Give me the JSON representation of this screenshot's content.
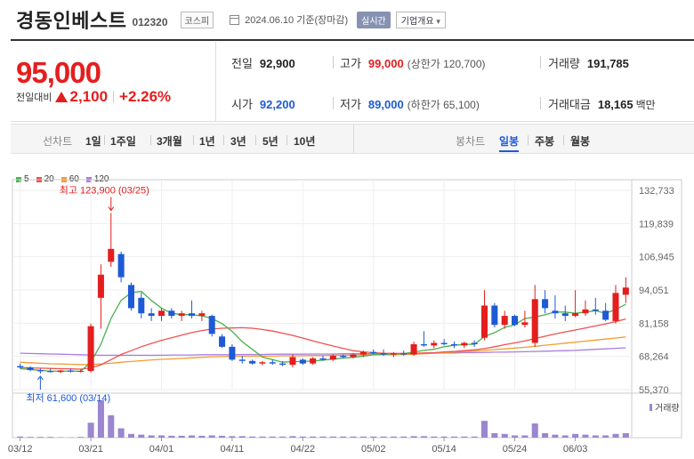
{
  "header": {
    "name": "경동인베스트",
    "code": "012320",
    "market": "코스피",
    "date": "2024.06.10 기준(장마감)",
    "realtime": "실시간",
    "company_info": "기업개요",
    "company_info_arrow": "▾"
  },
  "price": {
    "current": "95,000",
    "change_label": "전일대비",
    "change_amount": "2,100",
    "change_percent": "+2.26%",
    "color_up": "#e41e1e",
    "color_down": "#1e5ad6"
  },
  "stats": {
    "prev_label": "전일",
    "prev": "92,900",
    "high_label": "고가",
    "high": "99,000",
    "upper_limit": "(상한가 120,700)",
    "volume_label": "거래량",
    "volume": "191,785",
    "open_label": "시가",
    "open": "92,200",
    "low_label": "저가",
    "low": "89,000",
    "lower_limit": "(하한가 65,100)",
    "amount_label": "거래대금",
    "amount": "18,165",
    "amount_unit": "백만"
  },
  "toolbar": {
    "line_label": "선차트",
    "line_periods": [
      "1일",
      "1주일",
      "3개월",
      "1년",
      "3년",
      "5년",
      "10년"
    ],
    "candle_label": "봉차트",
    "candle_periods": [
      "일봉",
      "주봉",
      "월봉"
    ],
    "candle_active": "일봉"
  },
  "chart_data": {
    "type": "candlestick",
    "legend": [
      {
        "name": "5",
        "color": "#4caf50"
      },
      {
        "name": "20",
        "color": "#f05050"
      },
      {
        "name": "60",
        "color": "#f39c32"
      },
      {
        "name": "120",
        "color": "#a97de0"
      }
    ],
    "y_ticks": [
      "132,733",
      "119,839",
      "106,945",
      "94,051",
      "81,158",
      "68,264",
      "55,370"
    ],
    "ylim": [
      55370,
      132733
    ],
    "x_ticks": [
      "03/12",
      "03/21",
      "04/01",
      "04/11",
      "04/22",
      "05/02",
      "05/14",
      "05/24",
      "06/03"
    ],
    "high_annotation": "최고 123,900 (03/25)",
    "low_annotation": "최저 61,600 (03/14)",
    "volume_label": "거래량",
    "candles": [
      {
        "d": "03/12",
        "o": 64500,
        "h": 65500,
        "l": 63500,
        "c": 64000
      },
      {
        "d": "03/13",
        "o": 64000,
        "h": 64500,
        "l": 62500,
        "c": 63000
      },
      {
        "d": "03/14",
        "o": 63000,
        "h": 63500,
        "l": 61600,
        "c": 62500
      },
      {
        "d": "03/15",
        "o": 62500,
        "h": 63500,
        "l": 62000,
        "c": 62200
      },
      {
        "d": "03/18",
        "o": 62200,
        "h": 63000,
        "l": 61800,
        "c": 62800
      },
      {
        "d": "03/19",
        "o": 62800,
        "h": 63500,
        "l": 62000,
        "c": 62400
      },
      {
        "d": "03/20",
        "o": 62400,
        "h": 63200,
        "l": 62000,
        "c": 62600
      },
      {
        "d": "03/21",
        "o": 62600,
        "h": 81000,
        "l": 62000,
        "c": 80000
      },
      {
        "d": "03/22",
        "o": 91000,
        "h": 104000,
        "l": 79000,
        "c": 100000
      },
      {
        "d": "03/25",
        "o": 105000,
        "h": 123900,
        "l": 103000,
        "c": 110000
      },
      {
        "d": "03/26",
        "o": 108000,
        "h": 109000,
        "l": 97000,
        "c": 99000
      },
      {
        "d": "03/27",
        "o": 96000,
        "h": 97000,
        "l": 86000,
        "c": 87000
      },
      {
        "d": "03/28",
        "o": 91000,
        "h": 93000,
        "l": 83000,
        "c": 85000
      },
      {
        "d": "03/29",
        "o": 85000,
        "h": 87000,
        "l": 82000,
        "c": 84000
      },
      {
        "d": "04/01",
        "o": 84000,
        "h": 87000,
        "l": 82000,
        "c": 86000
      },
      {
        "d": "04/02",
        "o": 86000,
        "h": 87000,
        "l": 83000,
        "c": 84000
      },
      {
        "d": "04/03",
        "o": 84000,
        "h": 86000,
        "l": 82000,
        "c": 85000
      },
      {
        "d": "04/04",
        "o": 85000,
        "h": 90000,
        "l": 83000,
        "c": 84000
      },
      {
        "d": "04/05",
        "o": 84000,
        "h": 86000,
        "l": 82000,
        "c": 85000
      },
      {
        "d": "04/08",
        "o": 84000,
        "h": 84500,
        "l": 76000,
        "c": 77000
      },
      {
        "d": "04/09",
        "o": 76000,
        "h": 77000,
        "l": 71500,
        "c": 72000
      },
      {
        "d": "04/11",
        "o": 72000,
        "h": 73000,
        "l": 66500,
        "c": 67000
      },
      {
        "d": "04/12",
        "o": 67000,
        "h": 68500,
        "l": 65500,
        "c": 66500
      },
      {
        "d": "04/15",
        "o": 66500,
        "h": 67000,
        "l": 65000,
        "c": 65500
      },
      {
        "d": "04/16",
        "o": 65500,
        "h": 66500,
        "l": 64800,
        "c": 66000
      },
      {
        "d": "04/17",
        "o": 66000,
        "h": 67000,
        "l": 65000,
        "c": 65500
      },
      {
        "d": "04/18",
        "o": 65500,
        "h": 66500,
        "l": 64500,
        "c": 65000
      },
      {
        "d": "04/19",
        "o": 65000,
        "h": 69000,
        "l": 64000,
        "c": 68000
      },
      {
        "d": "04/22",
        "o": 67000,
        "h": 67500,
        "l": 65000,
        "c": 65500
      },
      {
        "d": "04/23",
        "o": 65500,
        "h": 68000,
        "l": 65000,
        "c": 67500
      },
      {
        "d": "04/24",
        "o": 67500,
        "h": 68500,
        "l": 66500,
        "c": 67000
      },
      {
        "d": "04/25",
        "o": 67000,
        "h": 69000,
        "l": 66500,
        "c": 68500
      },
      {
        "d": "04/26",
        "o": 68500,
        "h": 69000,
        "l": 67500,
        "c": 68000
      },
      {
        "d": "04/29",
        "o": 68000,
        "h": 69500,
        "l": 67500,
        "c": 69000
      },
      {
        "d": "04/30",
        "o": 69000,
        "h": 70500,
        "l": 68000,
        "c": 70000
      },
      {
        "d": "05/02",
        "o": 70000,
        "h": 71000,
        "l": 69000,
        "c": 69500
      },
      {
        "d": "05/03",
        "o": 69500,
        "h": 71000,
        "l": 68500,
        "c": 69000
      },
      {
        "d": "05/07",
        "o": 69000,
        "h": 70000,
        "l": 68000,
        "c": 69500
      },
      {
        "d": "05/08",
        "o": 69500,
        "h": 70500,
        "l": 68500,
        "c": 69000
      },
      {
        "d": "05/09",
        "o": 69000,
        "h": 74000,
        "l": 68500,
        "c": 73000
      },
      {
        "d": "05/10",
        "o": 73000,
        "h": 78000,
        "l": 72000,
        "c": 72500
      },
      {
        "d": "05/13",
        "o": 72500,
        "h": 74500,
        "l": 71500,
        "c": 73500
      },
      {
        "d": "05/14",
        "o": 73500,
        "h": 75000,
        "l": 72500,
        "c": 73000
      },
      {
        "d": "05/16",
        "o": 73000,
        "h": 74000,
        "l": 71500,
        "c": 72500
      },
      {
        "d": "05/17",
        "o": 72500,
        "h": 74000,
        "l": 71500,
        "c": 73500
      },
      {
        "d": "05/20",
        "o": 73500,
        "h": 74500,
        "l": 72000,
        "c": 73000
      },
      {
        "d": "05/21",
        "o": 75500,
        "h": 94000,
        "l": 74500,
        "c": 88000
      },
      {
        "d": "05/22",
        "o": 88000,
        "h": 89000,
        "l": 79500,
        "c": 80500
      },
      {
        "d": "05/23",
        "o": 80500,
        "h": 86000,
        "l": 79000,
        "c": 84000
      },
      {
        "d": "05/24",
        "o": 84000,
        "h": 84500,
        "l": 80000,
        "c": 80500
      },
      {
        "d": "05/27",
        "o": 80500,
        "h": 86000,
        "l": 79500,
        "c": 81500
      },
      {
        "d": "05/28",
        "o": 73500,
        "h": 96000,
        "l": 72000,
        "c": 90500
      },
      {
        "d": "05/29",
        "o": 90500,
        "h": 94000,
        "l": 85000,
        "c": 87000
      },
      {
        "d": "05/30",
        "o": 86000,
        "h": 92000,
        "l": 83000,
        "c": 85000
      },
      {
        "d": "05/31",
        "o": 85000,
        "h": 88000,
        "l": 82000,
        "c": 84000
      },
      {
        "d": "06/03",
        "o": 84000,
        "h": 94000,
        "l": 83500,
        "c": 85000
      },
      {
        "d": "06/04",
        "o": 85000,
        "h": 90000,
        "l": 84000,
        "c": 86500
      },
      {
        "d": "06/05",
        "o": 86500,
        "h": 91000,
        "l": 84500,
        "c": 86000
      },
      {
        "d": "06/07",
        "o": 86000,
        "h": 89000,
        "l": 82000,
        "c": 82500
      },
      {
        "d": "06/07b",
        "o": 82000,
        "h": 96000,
        "l": 81000,
        "c": 92900
      },
      {
        "d": "06/10",
        "o": 92200,
        "h": 99000,
        "l": 89000,
        "c": 95000
      }
    ],
    "ma5": [
      63500,
      63200,
      62800,
      62600,
      62500,
      62600,
      62500,
      66000,
      73000,
      83000,
      90000,
      93000,
      93500,
      90000,
      87000,
      85000,
      84500,
      84500,
      84000,
      83000,
      81000,
      78000,
      74000,
      71000,
      68000,
      67000,
      66000,
      66200,
      66300,
      66500,
      66800,
      67200,
      67600,
      67900,
      68400,
      68900,
      69100,
      69200,
      69300,
      70000,
      70600,
      71000,
      72000,
      72600,
      72900,
      73000,
      76000,
      77500,
      79500,
      80500,
      83000,
      83500,
      84500,
      85500,
      85500,
      85000,
      85500,
      86000,
      85000,
      86500,
      88500
    ],
    "ma20": [
      64000,
      63800,
      63700,
      63600,
      63500,
      63400,
      63300,
      63800,
      65000,
      67000,
      69000,
      70500,
      72000,
      73300,
      74500,
      75500,
      76500,
      77500,
      78300,
      78900,
      79200,
      79300,
      79400,
      79200,
      78700,
      78100,
      77300,
      76400,
      75400,
      74300,
      73300,
      72300,
      71400,
      70500,
      70000,
      69700,
      69500,
      69400,
      69400,
      69500,
      69600,
      69700,
      70000,
      70200,
      70500,
      70800,
      71300,
      72000,
      72800,
      73500,
      74300,
      75200,
      76100,
      77000,
      77800,
      78500,
      79300,
      80100,
      80900,
      81800,
      82800
    ],
    "ma60": [
      66000,
      65800,
      65600,
      65400,
      65300,
      65200,
      65100,
      65100,
      65300,
      65600,
      66000,
      66300,
      66600,
      66900,
      67100,
      67300,
      67500,
      67700,
      67900,
      68100,
      68200,
      68300,
      68400,
      68400,
      68400,
      68400,
      68500,
      68500,
      68500,
      68600,
      68600,
      68700,
      68700,
      68800,
      68800,
      68900,
      68900,
      68900,
      69000,
      69100,
      69300,
      69500,
      69700,
      69900,
      70100,
      70300,
      70600,
      70900,
      71200,
      71500,
      71800,
      72200,
      72600,
      73000,
      73400,
      73800,
      74200,
      74600,
      75000,
      75400,
      75800
    ],
    "ma120": [
      69500,
      69400,
      69300,
      69200,
      69100,
      69000,
      68900,
      68800,
      68700,
      68700,
      68700,
      68700,
      68700,
      68700,
      68700,
      68800,
      68800,
      68800,
      68900,
      68900,
      68900,
      68900,
      69000,
      69000,
      69000,
      69100,
      69100,
      69100,
      69100,
      69200,
      69200,
      69200,
      69300,
      69300,
      69300,
      69300,
      69400,
      69400,
      69400,
      69500,
      69500,
      69500,
      69600,
      69600,
      69700,
      69700,
      69800,
      69900,
      69900,
      70000,
      70100,
      70200,
      70300,
      70400,
      70500,
      70600,
      70800,
      71000,
      71200,
      71400,
      71600
    ],
    "volume": [
      3,
      2,
      2,
      2,
      1,
      1,
      2,
      40,
      100,
      60,
      25,
      10,
      8,
      6,
      6,
      5,
      5,
      6,
      5,
      6,
      5,
      4,
      4,
      3,
      3,
      3,
      3,
      4,
      3,
      3,
      3,
      3,
      3,
      3,
      3,
      3,
      3,
      3,
      3,
      4,
      4,
      3,
      3,
      3,
      3,
      3,
      45,
      12,
      10,
      6,
      6,
      38,
      12,
      8,
      6,
      10,
      8,
      6,
      6,
      10,
      12
    ]
  }
}
